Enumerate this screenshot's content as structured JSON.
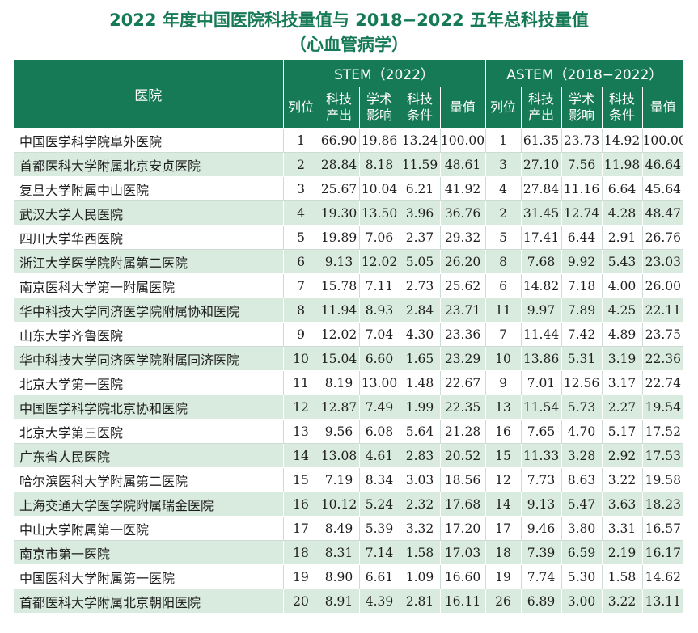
{
  "title_line1": "2022 年度中国医院科技量值与 2018−2022 五年总科技量值",
  "title_line2": "（心血管病学）",
  "header": {
    "hospital": "医院",
    "stem_group": "STEM（2022）",
    "astem_group": "ASTEM（2018−2022）",
    "cols": [
      "列位",
      "科技\n产出",
      "学术\n影响",
      "科技\n条件",
      "量值"
    ]
  },
  "rows": [
    {
      "name": "中国医学科学院阜外医院",
      "s": [
        "1",
        "66.90",
        "19.86",
        "13.24",
        "100.00"
      ],
      "a": [
        "1",
        "61.35",
        "23.73",
        "14.92",
        "100.00"
      ]
    },
    {
      "name": "首都医科大学附属北京安贞医院",
      "s": [
        "2",
        "28.84",
        "8.18",
        "11.59",
        "48.61"
      ],
      "a": [
        "3",
        "27.10",
        "7.56",
        "11.98",
        "46.64"
      ]
    },
    {
      "name": "复旦大学附属中山医院",
      "s": [
        "3",
        "25.67",
        "10.04",
        "6.21",
        "41.92"
      ],
      "a": [
        "4",
        "27.84",
        "11.16",
        "6.64",
        "45.64"
      ]
    },
    {
      "name": "武汉大学人民医院",
      "s": [
        "4",
        "19.30",
        "13.50",
        "3.96",
        "36.76"
      ],
      "a": [
        "2",
        "31.45",
        "12.74",
        "4.28",
        "48.47"
      ]
    },
    {
      "name": "四川大学华西医院",
      "s": [
        "5",
        "19.89",
        "7.06",
        "2.37",
        "29.32"
      ],
      "a": [
        "5",
        "17.41",
        "6.44",
        "2.91",
        "26.76"
      ]
    },
    {
      "name": "浙江大学医学院附属第二医院",
      "s": [
        "6",
        "9.13",
        "12.02",
        "5.05",
        "26.20"
      ],
      "a": [
        "8",
        "7.68",
        "9.92",
        "5.43",
        "23.03"
      ]
    },
    {
      "name": "南京医科大学第一附属医院",
      "s": [
        "7",
        "15.78",
        "7.11",
        "2.73",
        "25.62"
      ],
      "a": [
        "6",
        "14.82",
        "7.18",
        "4.00",
        "26.00"
      ]
    },
    {
      "name": "华中科技大学同济医学院附属协和医院",
      "s": [
        "8",
        "11.94",
        "8.93",
        "2.84",
        "23.71"
      ],
      "a": [
        "11",
        "9.97",
        "7.89",
        "4.25",
        "22.11"
      ]
    },
    {
      "name": "山东大学齐鲁医院",
      "s": [
        "9",
        "12.02",
        "7.04",
        "4.30",
        "23.36"
      ],
      "a": [
        "7",
        "11.44",
        "7.42",
        "4.89",
        "23.75"
      ]
    },
    {
      "name": "华中科技大学同济医学院附属同济医院",
      "s": [
        "10",
        "15.04",
        "6.60",
        "1.65",
        "23.29"
      ],
      "a": [
        "10",
        "13.86",
        "5.31",
        "3.19",
        "22.36"
      ]
    },
    {
      "name": "北京大学第一医院",
      "s": [
        "11",
        "8.19",
        "13.00",
        "1.48",
        "22.67"
      ],
      "a": [
        "9",
        "7.01",
        "12.56",
        "3.17",
        "22.74"
      ]
    },
    {
      "name": "中国医学科学院北京协和医院",
      "s": [
        "12",
        "12.87",
        "7.49",
        "1.99",
        "22.35"
      ],
      "a": [
        "13",
        "11.54",
        "5.73",
        "2.27",
        "19.54"
      ]
    },
    {
      "name": "北京大学第三医院",
      "s": [
        "13",
        "9.56",
        "6.08",
        "5.64",
        "21.28"
      ],
      "a": [
        "16",
        "7.65",
        "4.70",
        "5.17",
        "17.52"
      ]
    },
    {
      "name": "广东省人民医院",
      "s": [
        "14",
        "13.08",
        "4.61",
        "2.83",
        "20.52"
      ],
      "a": [
        "15",
        "11.33",
        "3.28",
        "2.92",
        "17.53"
      ]
    },
    {
      "name": "哈尔滨医科大学附属第二医院",
      "s": [
        "15",
        "7.19",
        "8.34",
        "3.03",
        "18.56"
      ],
      "a": [
        "12",
        "7.73",
        "8.63",
        "3.22",
        "19.58"
      ]
    },
    {
      "name": "上海交通大学医学院附属瑞金医院",
      "s": [
        "16",
        "10.12",
        "5.24",
        "2.32",
        "17.68"
      ],
      "a": [
        "14",
        "9.13",
        "5.47",
        "3.63",
        "18.23"
      ]
    },
    {
      "name": "中山大学附属第一医院",
      "s": [
        "17",
        "8.49",
        "5.39",
        "3.32",
        "17.20"
      ],
      "a": [
        "17",
        "9.46",
        "3.80",
        "3.31",
        "16.57"
      ]
    },
    {
      "name": "南京市第一医院",
      "s": [
        "18",
        "8.31",
        "7.14",
        "1.58",
        "17.03"
      ],
      "a": [
        "18",
        "7.39",
        "6.59",
        "2.19",
        "16.17"
      ]
    },
    {
      "name": "中国医科大学附属第一医院",
      "s": [
        "19",
        "8.90",
        "6.61",
        "1.09",
        "16.60"
      ],
      "a": [
        "19",
        "7.74",
        "5.30",
        "1.58",
        "14.62"
      ]
    },
    {
      "name": "首都医科大学附属北京朝阳医院",
      "s": [
        "20",
        "8.91",
        "4.39",
        "2.81",
        "16.11"
      ],
      "a": [
        "26",
        "6.89",
        "3.00",
        "3.22",
        "13.11"
      ]
    }
  ],
  "colors": {
    "accent": "#157a55",
    "stripe": "#d9eadf"
  }
}
